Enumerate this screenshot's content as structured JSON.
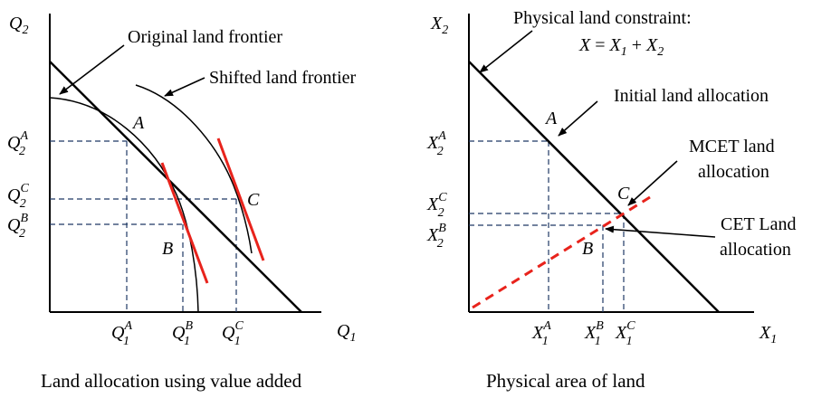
{
  "left": {
    "caption": "Land allocation using value added",
    "y_axis_label": "Q",
    "y_axis_sub": "2",
    "x_axis_label": "Q",
    "x_axis_sub": "1",
    "original_frontier_label": "Original land frontier",
    "shifted_frontier_label": "Shifted land frontier",
    "point_a": "A",
    "point_b": "B",
    "point_c": "C",
    "tick_q2a": {
      "base": "Q",
      "sub": "2",
      "sup": "A"
    },
    "tick_q2c": {
      "base": "Q",
      "sub": "2",
      "sup": "C"
    },
    "tick_q2b": {
      "base": "Q",
      "sub": "2",
      "sup": "B"
    },
    "tick_q1a": {
      "base": "Q",
      "sub": "1",
      "sup": "A"
    },
    "tick_q1b": {
      "base": "Q",
      "sub": "1",
      "sup": "B"
    },
    "tick_q1c": {
      "base": "Q",
      "sub": "1",
      "sup": "C"
    }
  },
  "right": {
    "caption": "Physical area of land",
    "y_axis_label": "X",
    "y_axis_sub": "2",
    "x_axis_label": "X",
    "x_axis_sub": "1",
    "constraint_title": "Physical land constraint:",
    "constraint_eq": {
      "lhs": "X",
      "rhs1": "X",
      "sub1": "1",
      "plus": "+",
      "rhs2": "X",
      "sub2": "2"
    },
    "initial_label": "Initial land allocation",
    "mcet_line1": "MCET land",
    "mcet_line2": "allocation",
    "cet_line1": "CET Land",
    "cet_line2": "allocation",
    "point_a": "A",
    "point_b": "B",
    "point_c": "C",
    "tick_x2a": {
      "base": "X",
      "sub": "2",
      "sup": "A"
    },
    "tick_x2c": {
      "base": "X",
      "sub": "2",
      "sup": "C"
    },
    "tick_x2b": {
      "base": "X",
      "sub": "2",
      "sup": "B"
    },
    "tick_x1a": {
      "base": "X",
      "sub": "1",
      "sup": "A"
    },
    "tick_x1b": {
      "base": "X",
      "sub": "1",
      "sup": "B"
    },
    "tick_x1c": {
      "base": "X",
      "sub": "1",
      "sup": "C"
    }
  },
  "colors": {
    "ink": "#000000",
    "guide": "#1f3864",
    "tangent": "#e8231c"
  }
}
